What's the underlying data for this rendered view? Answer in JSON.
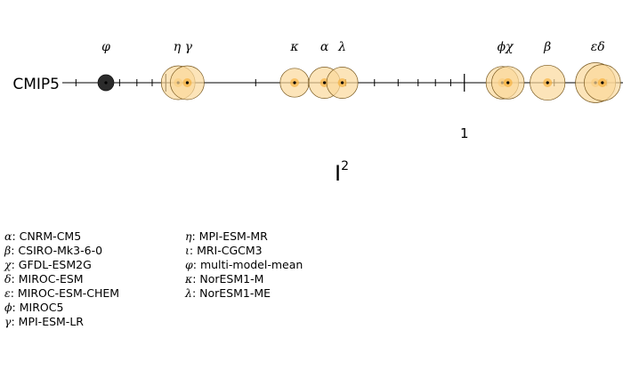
{
  "chart_data": {
    "type": "scatter",
    "row_label": "CMIP5",
    "xlabel": "I",
    "xlabel_superscript": "2",
    "x_scale": "log",
    "xlim": [
      0.045,
      3.4
    ],
    "ticks": [
      {
        "value": 0.1,
        "label": ""
      },
      {
        "value": 1,
        "label": "1"
      },
      {
        "value": 10,
        "label": ""
      }
    ],
    "colors": {
      "model_fill": "#fbd89b",
      "model_stroke": "#7a5a20",
      "mean_fill": "#2b2b2b",
      "highlight_fill": "#f5a623",
      "axis": "#000000"
    },
    "points": [
      {
        "symbol": "φ",
        "model": "multi-model-mean",
        "value": 0.063,
        "spread": 0.0
      },
      {
        "symbol": "η",
        "model": "MPI-ESM-MR",
        "value": 0.11,
        "spread": 1.0
      },
      {
        "symbol": "γ",
        "model": "MPI-ESM-LR",
        "value": 0.118,
        "spread": 1.0
      },
      {
        "symbol": "κ",
        "model": "NorESM1-M",
        "value": 0.27,
        "spread": 0.6
      },
      {
        "symbol": "α",
        "model": "CNRM-CM5",
        "value": 0.34,
        "spread": 0.8
      },
      {
        "symbol": "λ",
        "model": "NorESM1-ME",
        "value": 0.39,
        "spread": 0.8
      },
      {
        "symbol": "ϕ",
        "model": "MIROC5",
        "value": 1.34,
        "spread": 0.9
      },
      {
        "symbol": "χ",
        "model": "GFDL-ESM2G",
        "value": 1.4,
        "spread": 0.9
      },
      {
        "symbol": "β",
        "model": "CSIRO-Mk3-6-0",
        "value": 1.9,
        "spread": 1.1
      },
      {
        "symbol": "ε",
        "model": "MIROC-ESM-CHEM",
        "value": 2.75,
        "spread": 1.5
      },
      {
        "symbol": "δ",
        "model": "MIROC-ESM",
        "value": 2.9,
        "spread": 1.2
      }
    ],
    "symbol_labels": [
      {
        "text": "φ",
        "value": 0.063
      },
      {
        "text": "η γ",
        "value": 0.114
      },
      {
        "text": "κ",
        "value": 0.27
      },
      {
        "text": "α",
        "value": 0.34
      },
      {
        "text": "λ",
        "value": 0.39
      },
      {
        "text": "ϕχ",
        "value": 1.37
      },
      {
        "text": "β",
        "value": 1.9
      },
      {
        "text": "εδ",
        "value": 2.8
      }
    ]
  },
  "legend": {
    "column_1": [
      {
        "symbol": "α",
        "model": "CNRM-CM5"
      },
      {
        "symbol": "β",
        "model": "CSIRO-Mk3-6-0"
      },
      {
        "symbol": "χ",
        "model": "GFDL-ESM2G"
      },
      {
        "symbol": "δ",
        "model": "MIROC-ESM"
      },
      {
        "symbol": "ε",
        "model": "MIROC-ESM-CHEM"
      },
      {
        "symbol": "ϕ",
        "model": "MIROC5"
      },
      {
        "symbol": "γ",
        "model": "MPI-ESM-LR"
      }
    ],
    "column_2": [
      {
        "symbol": "η",
        "model": "MPI-ESM-MR"
      },
      {
        "symbol": "ι",
        "model": "MRI-CGCM3"
      },
      {
        "symbol": "φ",
        "model": "multi-model-mean"
      },
      {
        "symbol": "κ",
        "model": "NorESM1-M"
      },
      {
        "symbol": "λ",
        "model": "NorESM1-ME"
      }
    ]
  }
}
